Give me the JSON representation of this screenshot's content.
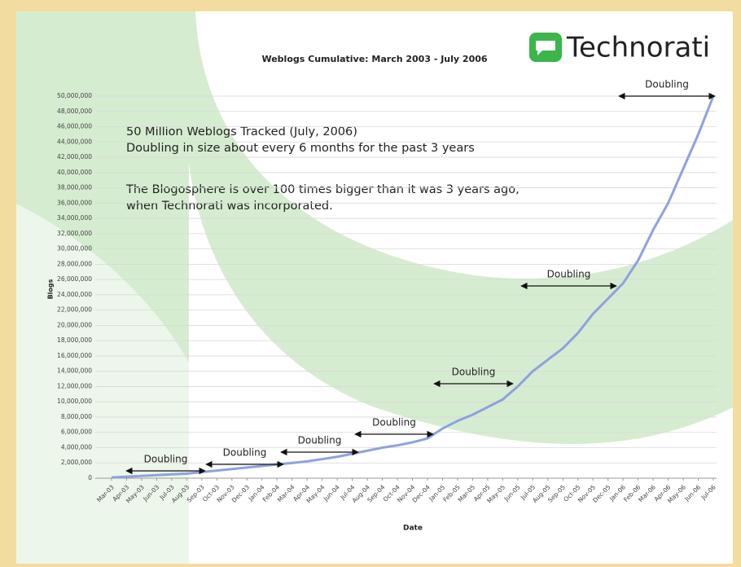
{
  "chart_data": {
    "type": "line",
    "title": "Weblogs Cumulative: March 2003 - July 2006",
    "logo": "Technorati",
    "x_label": "Date",
    "y_label": "Blogs",
    "annotations": [
      "50 Million Weblogs Tracked (July, 2006)",
      "Doubling in size about every 6 months for the past 3 years",
      "The Blogosphere is over 100 times bigger than it was 3 years ago,",
      "when Technorati was incorporated."
    ],
    "doubling_labels": [
      "Doubling",
      "Doubling",
      "Doubling",
      "Doubling",
      "Doubling",
      "Doubling",
      "Doubling"
    ],
    "categories": [
      "Mar-03",
      "Apr-03",
      "May-03",
      "Jun-03",
      "Jul-03",
      "Aug-03",
      "Sep-03",
      "Oct-03",
      "Nov-03",
      "Dec-03",
      "Jan-04",
      "Feb-04",
      "Mar-04",
      "Apr-04",
      "May-04",
      "Jun-04",
      "Jul-04",
      "Aug-04",
      "Sep-04",
      "Oct-04",
      "Nov-04",
      "Dec-04",
      "Jan-05",
      "Feb-05",
      "Mar-05",
      "Apr-05",
      "May-05",
      "Jun-05",
      "Jul-05",
      "Aug-05",
      "Sep-05",
      "Oct-05",
      "Nov-05",
      "Dec-05",
      "Jan-06",
      "Feb-06",
      "Mar-06",
      "Apr-06",
      "May-06",
      "Jun-06",
      "Jul-06"
    ],
    "series": [
      {
        "name": "Blogs",
        "color": "#8ea2dd",
        "values": [
          100000,
          200000,
          300000,
          400000,
          500000,
          600000,
          800000,
          1000000,
          1200000,
          1400000,
          1600000,
          1800000,
          2000000,
          2200000,
          2500000,
          2800000,
          3200000,
          3600000,
          4000000,
          4300000,
          4700000,
          5200000,
          6500000,
          7500000,
          8300000,
          9300000,
          10300000,
          12000000,
          14000000,
          15500000,
          17000000,
          19000000,
          21500000,
          23500000,
          25500000,
          28500000,
          32500000,
          36000000,
          40500000,
          45000000,
          50000000
        ]
      }
    ],
    "ylim": [
      0,
      50000000
    ],
    "yticks": [
      0,
      {
        "value": 2000000,
        "label": "2,000,000"
      },
      {
        "value": 4000000,
        "label": "4,000,000"
      },
      {
        "value": 6000000,
        "label": "6,000,000"
      },
      {
        "value": 8000000,
        "label": "8,000,000"
      },
      {
        "value": 10000000,
        "label": "10,000,000"
      },
      {
        "value": 12000000,
        "label": "12,000,000"
      },
      {
        "value": 14000000,
        "label": "14,000,000"
      },
      {
        "value": 16000000,
        "label": "16,000,000"
      },
      {
        "value": 18000000,
        "label": "18,000,000"
      },
      {
        "value": 20000000,
        "label": "20,000,000"
      },
      {
        "value": 22000000,
        "label": "22,000,000"
      },
      {
        "value": 24000000,
        "label": "24,000,000"
      },
      {
        "value": 26000000,
        "label": "26,000,000"
      },
      {
        "value": 28000000,
        "label": "28,000,000"
      },
      {
        "value": 30000000,
        "label": "30,000,000"
      },
      {
        "value": 32000000,
        "label": "32,000,000"
      },
      {
        "value": 34000000,
        "label": "34,000,000"
      },
      {
        "value": 36000000,
        "label": "36,000,000"
      },
      {
        "value": 38000000,
        "label": "38,000,000"
      },
      {
        "value": 40000000,
        "label": "40,000,000"
      },
      {
        "value": 42000000,
        "label": "42,000,000"
      },
      {
        "value": 44000000,
        "label": "44,000,000"
      },
      {
        "value": 46000000,
        "label": "46,000,000"
      },
      {
        "value": 48000000,
        "label": "48,000,000"
      },
      {
        "value": 50000000,
        "label": "50,000,000"
      }
    ],
    "grid": true
  }
}
